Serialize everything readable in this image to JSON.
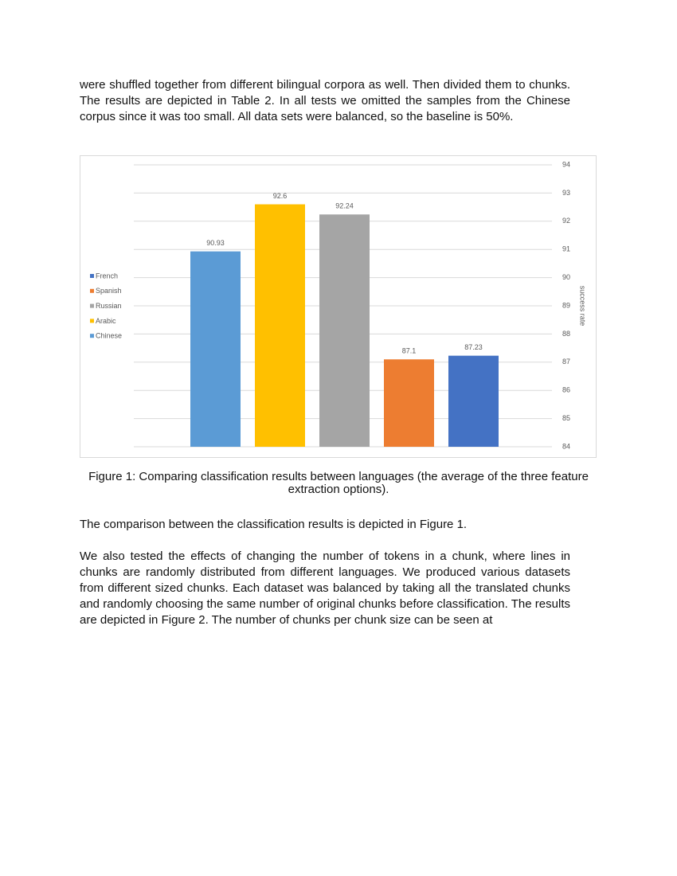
{
  "text_before": "were shuffled together from different bilingual corpora as well. Then divided them to chunks. The results are depicted in Table 2. In all tests we omitted the samples from the Chinese corpus since it was too small. All data sets were balanced, so the baseline is 50%.",
  "chart_data": {
    "type": "bar",
    "y_label": "success rate",
    "series": [
      {
        "name": "French",
        "color": "#4472c4",
        "values": [
          87.23
        ]
      },
      {
        "name": "Spanish",
        "color": "#ed7d31",
        "values": [
          87.1
        ]
      },
      {
        "name": "Russian",
        "color": "#a5a5a5",
        "values": [
          92.24
        ]
      },
      {
        "name": "Arabic",
        "color": "#ffc000",
        "values": [
          92.6
        ]
      },
      {
        "name": "Chinese",
        "color": "#5b9bd5",
        "values": [
          90.93
        ]
      }
    ],
    "ylim": [
      84,
      94
    ],
    "yticks": [
      84,
      85,
      86,
      87,
      88,
      89,
      90,
      91,
      92,
      93,
      94
    ],
    "grid": true,
    "legend": "left"
  },
  "caption": "Figure 1: Comparing classification results between languages (the average of the three feature extraction options).",
  "text_after": [
    "The comparison between the classification results is depicted in Figure 1.",
    "We also tested the effects of changing the number of tokens in a chunk, where lines in chunks are randomly distributed from different languages. We produced various datasets from different sized chunks. Each dataset was balanced by taking all the translated chunks and randomly choosing the same number of original chunks before classification. The results are depicted in Figure 2. The number of chunks per chunk size can be seen at"
  ]
}
